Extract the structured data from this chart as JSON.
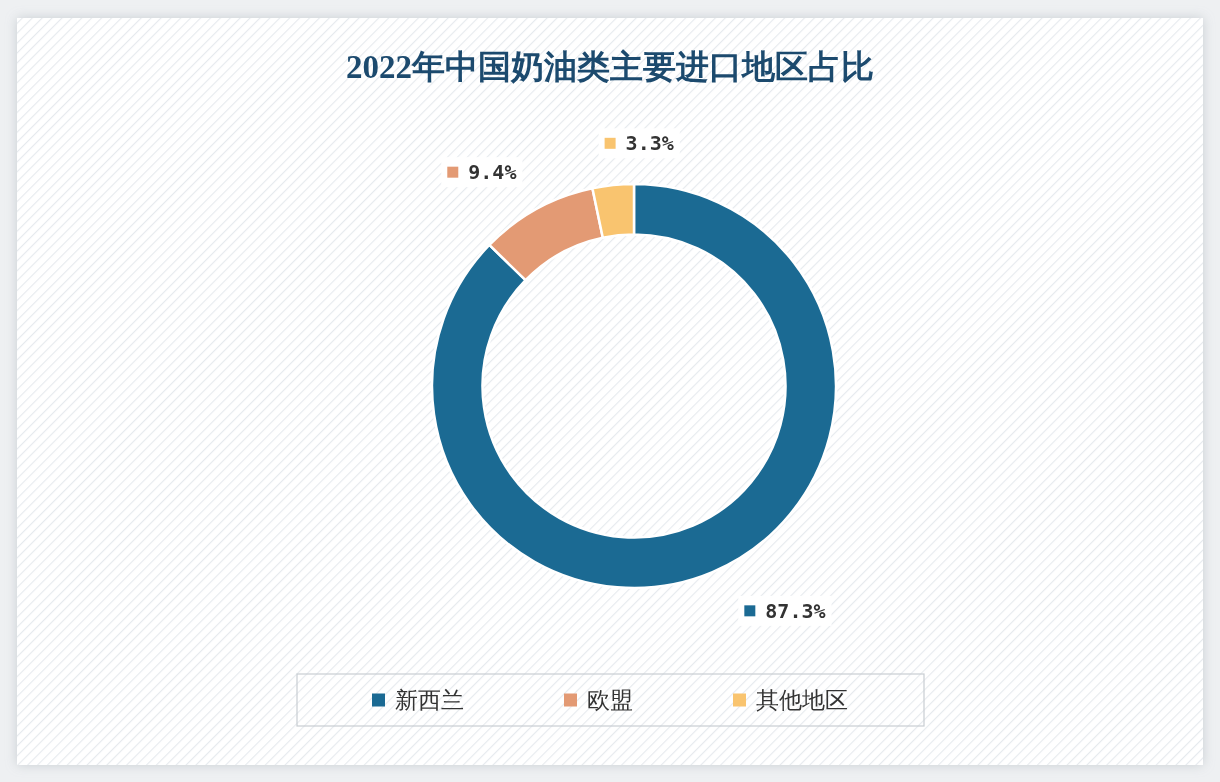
{
  "chart_data": {
    "type": "donut",
    "title": "2022年中国奶油类主要进口地区占比",
    "categories": [
      "新西兰",
      "欧盟",
      "其他地区"
    ],
    "values": [
      87.3,
      9.4,
      3.3
    ],
    "colors": [
      "#1b6a93",
      "#e39a74",
      "#f9c46f"
    ],
    "value_labels": [
      "87.3%",
      "9.4%",
      "3.3%"
    ],
    "legend": "bottom"
  }
}
